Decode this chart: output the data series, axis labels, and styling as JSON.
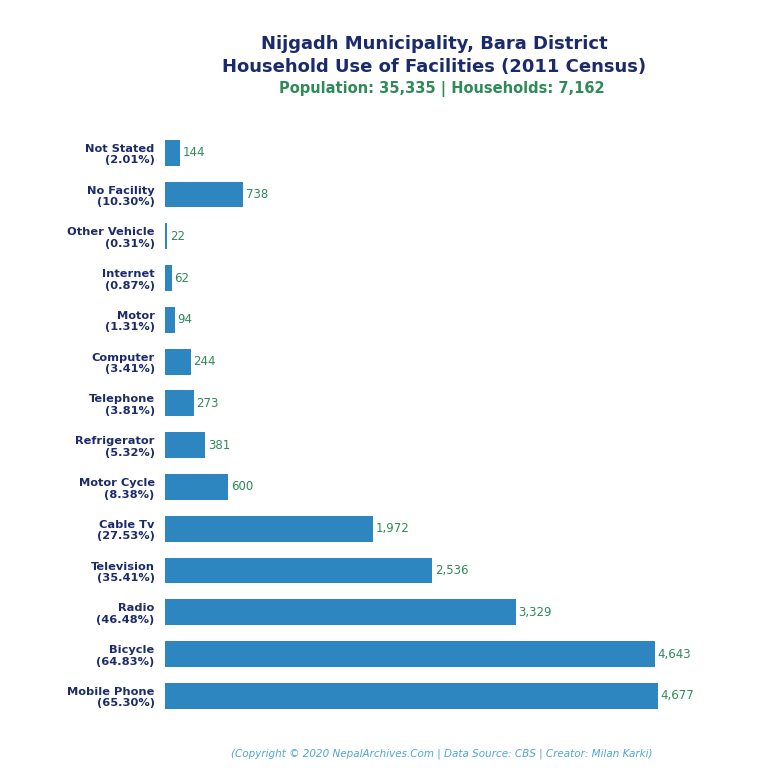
{
  "title_line1": "Nijgadh Municipality, Bara District",
  "title_line2": "Household Use of Facilities (2011 Census)",
  "subtitle": "Population: 35,335 | Households: 7,162",
  "footer": "(Copyright © 2020 NepalArchives.Com | Data Source: CBS | Creator: Milan Karki)",
  "categories": [
    "Mobile Phone\n(65.30%)",
    "Bicycle\n(64.83%)",
    "Radio\n(46.48%)",
    "Television\n(35.41%)",
    "Cable Tv\n(27.53%)",
    "Motor Cycle\n(8.38%)",
    "Refrigerator\n(5.32%)",
    "Telephone\n(3.81%)",
    "Computer\n(3.41%)",
    "Motor\n(1.31%)",
    "Internet\n(0.87%)",
    "Other Vehicle\n(0.31%)",
    "No Facility\n(10.30%)",
    "Not Stated\n(2.01%)"
  ],
  "values": [
    4677,
    4643,
    3329,
    2536,
    1972,
    600,
    381,
    273,
    244,
    94,
    62,
    22,
    738,
    144
  ],
  "value_labels": [
    "4,677",
    "4,643",
    "3,329",
    "2,536",
    "1,972",
    "600",
    "381",
    "273",
    "244",
    "94",
    "62",
    "22",
    "738",
    "144"
  ],
  "bar_color": "#2E86C1",
  "value_color": "#2E8B57",
  "title_color": "#1B2A6B",
  "subtitle_color": "#2E8B57",
  "footer_color": "#4DA6D9",
  "ylabel_color": "#1B2A6B",
  "background_color": "#FFFFFF",
  "xlim": [
    0,
    5100
  ]
}
